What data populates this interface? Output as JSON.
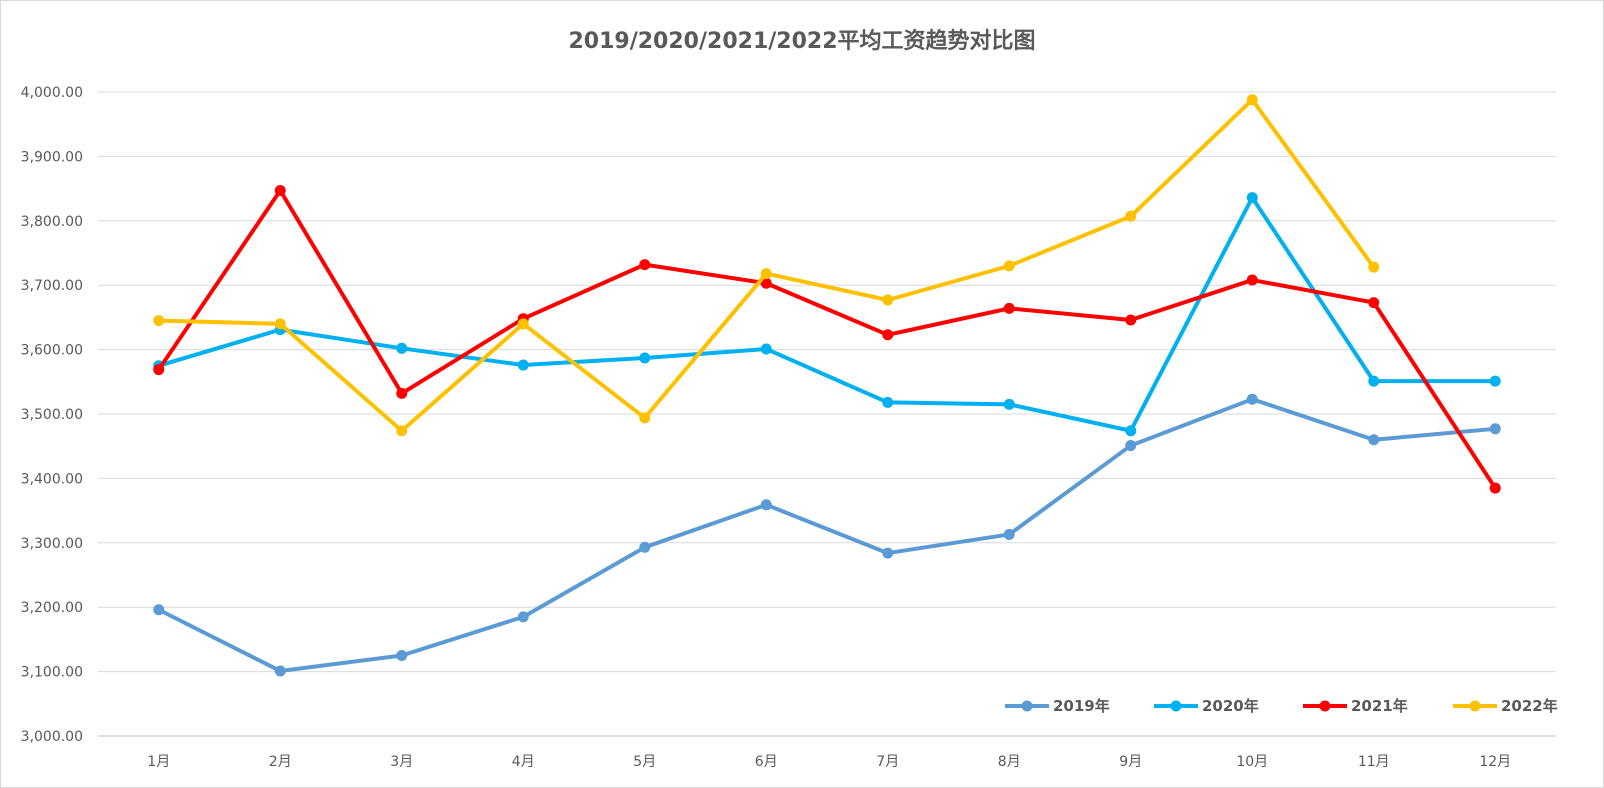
{
  "chart_data": {
    "type": "line",
    "title": "2019/2020/2021/2022平均工资趋势对比图",
    "xlabel": "",
    "ylabel": "",
    "categories": [
      "1月",
      "2月",
      "3月",
      "4月",
      "5月",
      "6月",
      "7月",
      "8月",
      "9月",
      "10月",
      "11月",
      "12月"
    ],
    "ylim": [
      3000,
      4000
    ],
    "yticks": [
      3000,
      3100,
      3200,
      3300,
      3400,
      3500,
      3600,
      3700,
      3800,
      3900,
      4000
    ],
    "ytick_labels": [
      "3,000.00",
      "3,100.00",
      "3,200.00",
      "3,300.00",
      "3,400.00",
      "3,500.00",
      "3,600.00",
      "3,700.00",
      "3,800.00",
      "3,900.00",
      "4,000.00"
    ],
    "grid": true,
    "legend_position": "bottom-right",
    "series": [
      {
        "name": "2019年",
        "color": "#5b9bd5",
        "values": [
          3196,
          3101,
          3125,
          3185,
          3293,
          3359,
          3284,
          3313,
          3451,
          3523,
          3460,
          3477
        ]
      },
      {
        "name": "2020年",
        "color": "#00b0f0",
        "values": [
          3575,
          3631,
          3602,
          3576,
          3587,
          3601,
          3518,
          3515,
          3474,
          3836,
          3551,
          3551
        ]
      },
      {
        "name": "2021年",
        "color": "#ff0000",
        "values": [
          3569,
          3847,
          3532,
          3648,
          3732,
          3703,
          3623,
          3664,
          3646,
          3708,
          3673,
          3385
        ]
      },
      {
        "name": "2022年",
        "color": "#ffc000",
        "values": [
          3645,
          3640,
          3474,
          3640,
          3494,
          3718,
          3677,
          3730,
          3807,
          3988,
          3728,
          null
        ]
      }
    ]
  }
}
